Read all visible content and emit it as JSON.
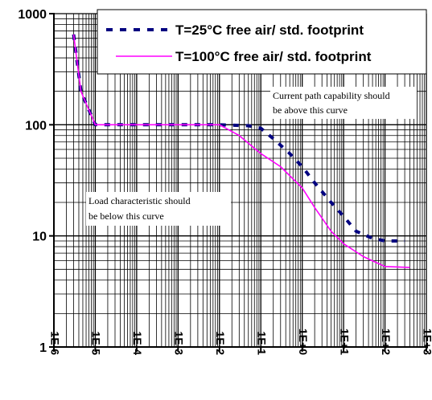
{
  "chart_data": {
    "type": "line",
    "x_scale": "log",
    "y_scale": "log",
    "xlim": [
      1e-06,
      1000
    ],
    "ylim": [
      1,
      1000
    ],
    "grid": true,
    "legend_position": "top-right",
    "x_tick_labels": [
      "1E-6",
      "1E-5",
      "1E-4",
      "1E-3",
      "1E-2",
      "1E-1",
      "1E+0",
      "1E+1",
      "1E+2",
      "1E+3"
    ],
    "y_tick_labels": [
      "1",
      "10",
      "100",
      "1000"
    ],
    "series": [
      {
        "name": "T=25°C free air/ std. footprint",
        "style": "dashed",
        "color": "#000080",
        "points": [
          [
            3e-06,
            650
          ],
          [
            4.5e-06,
            200
          ],
          [
            1e-05,
            100
          ],
          [
            0.0001,
            100
          ],
          [
            0.001,
            100
          ],
          [
            0.01,
            100
          ],
          [
            0.05,
            98
          ],
          [
            0.1,
            93
          ],
          [
            0.2,
            75
          ],
          [
            0.5,
            55
          ],
          [
            1,
            42
          ],
          [
            2,
            30
          ],
          [
            5,
            20
          ],
          [
            10,
            15
          ],
          [
            20,
            11
          ],
          [
            50,
            9.5
          ],
          [
            100,
            9
          ],
          [
            300,
            9
          ]
        ]
      },
      {
        "name": "T=100°C free air/ std. footprint",
        "style": "solid",
        "color": "#ff00ff",
        "points": [
          [
            3e-06,
            650
          ],
          [
            4.5e-06,
            200
          ],
          [
            1e-05,
            100
          ],
          [
            0.0001,
            100
          ],
          [
            0.001,
            100
          ],
          [
            0.01,
            100
          ],
          [
            0.03,
            80
          ],
          [
            0.1,
            55
          ],
          [
            0.3,
            42
          ],
          [
            1,
            27
          ],
          [
            2,
            18
          ],
          [
            5,
            11
          ],
          [
            10,
            8.5
          ],
          [
            30,
            6.5
          ],
          [
            100,
            5.3
          ],
          [
            400,
            5.2
          ]
        ]
      }
    ],
    "annotations": [
      {
        "lines": [
          "Current path capability should",
          "be above this curve"
        ]
      },
      {
        "lines": [
          "Load characteristic should",
          "be below this curve"
        ]
      }
    ]
  }
}
